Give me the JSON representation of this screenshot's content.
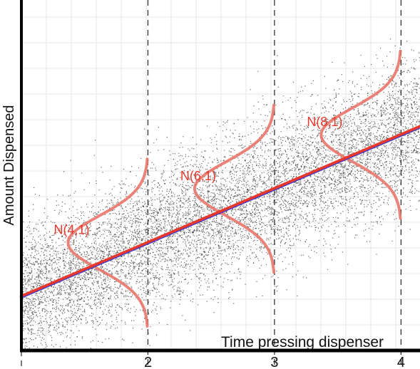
{
  "chart_data": {
    "type": "scatter",
    "title": "",
    "xlabel": "Time pressing dispenser",
    "ylabel": "Amount Dispensed",
    "x_ticks": [
      {
        "value": 2,
        "label": "2"
      },
      {
        "value": 3,
        "label": "3"
      },
      {
        "value": 4,
        "label": "4"
      }
    ],
    "xlim": [
      1,
      4.15
    ],
    "ylim": [
      0,
      13
    ],
    "grid": true,
    "regression_line": {
      "intercept": 0,
      "slope": 2,
      "color": "#e8382b",
      "inner_color": "#2f3fe0"
    },
    "scatter": {
      "n": 9000,
      "sd": 1.3,
      "color": "#333333"
    },
    "normal_curves": [
      {
        "x": 2,
        "mean": 4,
        "sd": 1,
        "label": "N(4,1)"
      },
      {
        "x": 3,
        "mean": 6,
        "sd": 1,
        "label": "N(6,1)"
      },
      {
        "x": 4,
        "mean": 8,
        "sd": 1,
        "label": "N(8,1)"
      }
    ],
    "colors": {
      "curve": "#e8756a",
      "label": "#e8382b",
      "axis": "#000000",
      "grid": "#e6e6e6",
      "guide": "#222222"
    }
  }
}
